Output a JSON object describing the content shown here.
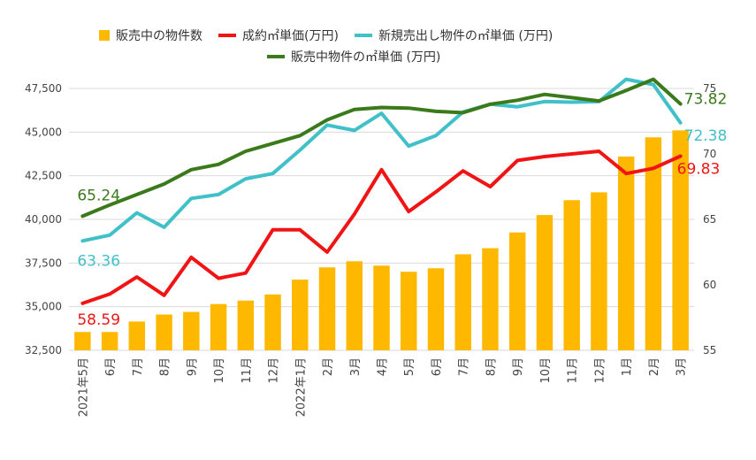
{
  "chart_data": {
    "type": "bar+line",
    "categories": [
      "2021年5月",
      "6月",
      "7月",
      "8月",
      "9月",
      "10月",
      "11月",
      "12月",
      "2022年1月",
      "2月",
      "3月",
      "4月",
      "5月",
      "6月",
      "7月",
      "8月",
      "9月",
      "10月",
      "11月",
      "12月",
      "1月",
      "2月",
      "3月"
    ],
    "bar_series": {
      "name": "販売中の物件数",
      "color": "#FFB800",
      "axis": "left",
      "values": [
        33550,
        33550,
        34150,
        34550,
        34700,
        35150,
        35350,
        35700,
        36550,
        37250,
        37600,
        37350,
        37000,
        37200,
        38000,
        38350,
        39250,
        40250,
        41100,
        41550,
        43600,
        44700,
        45100
      ]
    },
    "line_series": [
      {
        "name": "成約㎡単価(万円)",
        "color": "#F01414",
        "axis": "right",
        "values": [
          58.59,
          59.3,
          60.6,
          59.2,
          62.1,
          60.5,
          60.9,
          64.2,
          64.2,
          62.5,
          65.4,
          68.8,
          65.6,
          67.1,
          68.7,
          67.5,
          69.5,
          69.8,
          70.0,
          70.2,
          68.5,
          68.9,
          69.83
        ],
        "first_label": "58.59",
        "last_label": "69.83"
      },
      {
        "name": "新規売出し物件の㎡単価 (万円)",
        "color": "#40C0C8",
        "axis": "right",
        "values": [
          63.36,
          63.8,
          65.5,
          64.4,
          66.6,
          66.9,
          68.1,
          68.5,
          70.3,
          72.2,
          71.8,
          73.1,
          70.6,
          71.4,
          73.2,
          73.8,
          73.6,
          74.0,
          73.95,
          74.0,
          75.7,
          75.3,
          72.38
        ],
        "first_label": "63.36",
        "last_label": "72.38"
      },
      {
        "name": "販売中物件の㎡単価 (万円)",
        "color": "#3A7A1A",
        "axis": "right",
        "values": [
          65.24,
          66.1,
          66.9,
          67.7,
          68.8,
          69.2,
          70.2,
          70.8,
          71.4,
          72.6,
          73.4,
          73.55,
          73.5,
          73.25,
          73.15,
          73.8,
          74.1,
          74.55,
          74.3,
          74.05,
          74.85,
          75.7,
          73.82
        ],
        "first_label": "65.24",
        "last_label": "73.82"
      }
    ],
    "left_axis": {
      "min": 32500,
      "max": 47500,
      "ticks": [
        "32,500",
        "35,000",
        "37,500",
        "40,000",
        "42,500",
        "45,000",
        "47,500"
      ]
    },
    "right_axis": {
      "min": 55,
      "max": 75,
      "ticks": [
        "55",
        "60",
        "65",
        "70",
        "75"
      ]
    },
    "grid": true,
    "legend_position": "top"
  }
}
